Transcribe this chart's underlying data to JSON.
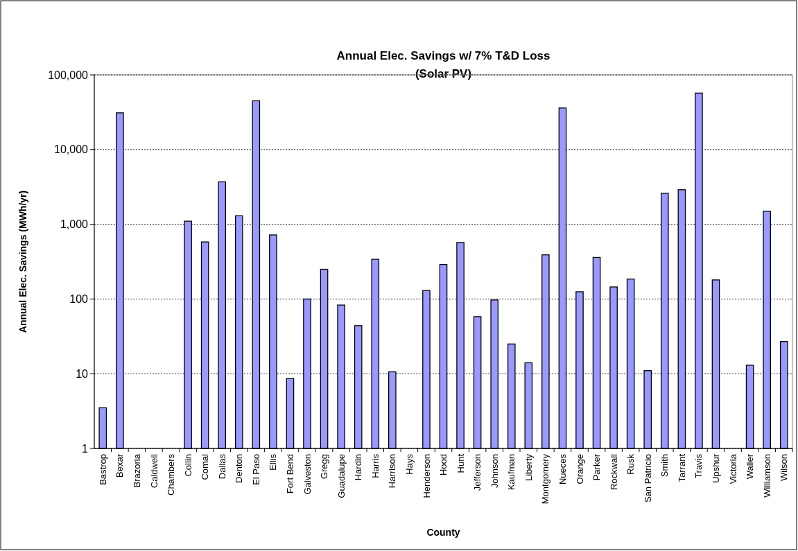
{
  "chart_data": {
    "type": "bar",
    "title": "Annual Elec. Savings w/ 7% T&D Loss",
    "subtitle": "(Solar PV)",
    "xlabel": "County",
    "ylabel": "Annual Elec. Savings (MWh/yr)",
    "categories": [
      "Bastrop",
      "Bexar",
      "Brazoria",
      "Caldwell",
      "Chambers",
      "Collin",
      "Comal",
      "Dallas",
      "Denton",
      "El Paso",
      "Ellis",
      "Fort Bend",
      "Galveston",
      "Gregg",
      "Guadalupe",
      "Hardin",
      "Harris",
      "Harrison",
      "Hays",
      "Henderson",
      "Hood",
      "Hunt",
      "Jefferson",
      "Johnson",
      "Kaufman",
      "Liberty",
      "Montgomery",
      "Nueces",
      "Orange",
      "Parker",
      "Rockwall",
      "Rusk",
      "San Patricio",
      "Smith",
      "Tarrant",
      "Travis",
      "Upshur",
      "Victoria",
      "Waller",
      "Williamson",
      "Wilson"
    ],
    "values": [
      3.5,
      31000,
      null,
      null,
      null,
      1100,
      580,
      3700,
      1300,
      45000,
      720,
      8.6,
      100,
      250,
      83,
      44,
      340,
      10.6,
      null,
      130,
      290,
      570,
      58,
      97,
      25,
      14,
      390,
      36000,
      125,
      360,
      145,
      185,
      11,
      2600,
      2900,
      57000,
      180,
      null,
      13,
      1500,
      27
    ],
    "color": "#9999ff",
    "log": true,
    "ylim": [
      1,
      100000
    ],
    "yticks": [
      1,
      10,
      100,
      {
        "value": 1000,
        "label": "1,000"
      },
      {
        "value": 10000,
        "label": "10,000"
      },
      {
        "value": 100000,
        "label": "100,000"
      }
    ],
    "grid": "y"
  }
}
